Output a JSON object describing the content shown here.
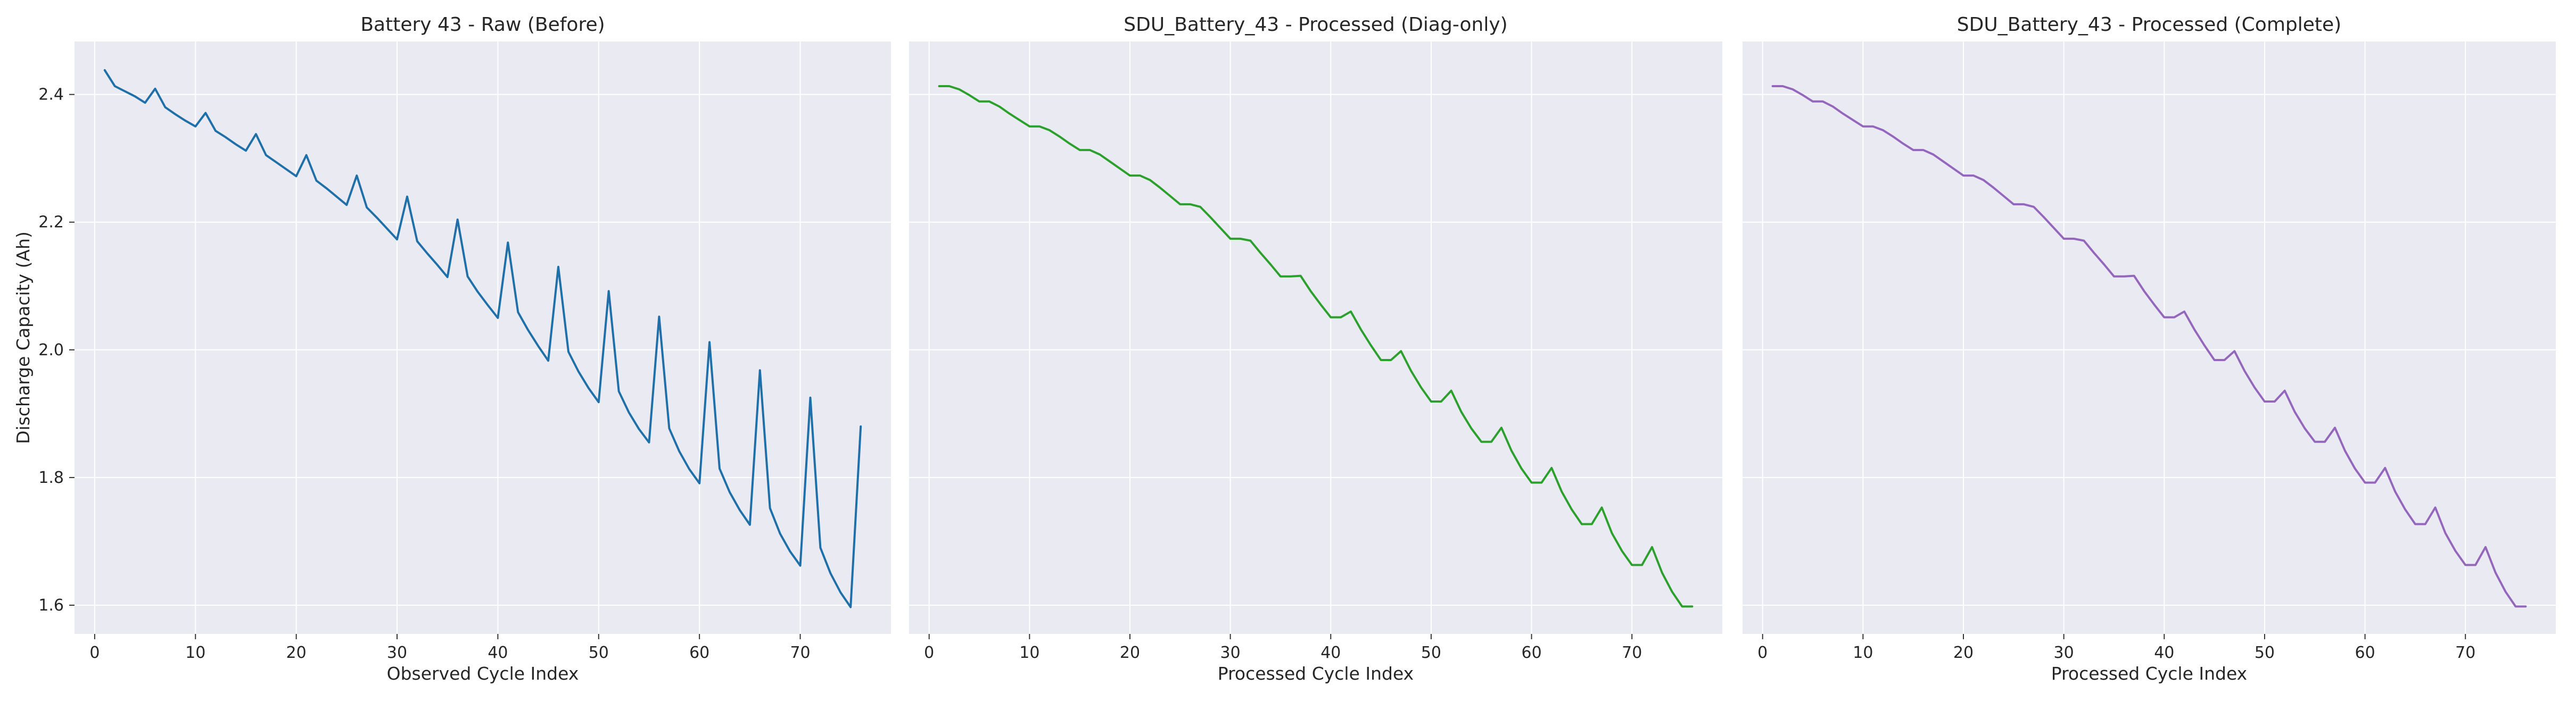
{
  "chart_data": [
    {
      "type": "line",
      "title": "Battery 43 - Raw (Before)",
      "xlabel": "Observed Cycle Index",
      "ylabel": "Discharge Capacity (Ah)",
      "xlim": [
        -2,
        79
      ],
      "ylim": [
        1.555,
        2.483
      ],
      "xticks": [
        "0",
        "10",
        "20",
        "30",
        "40",
        "50",
        "60",
        "70"
      ],
      "yticks": [
        "1.6",
        "1.8",
        "2.0",
        "2.2",
        "2.4"
      ],
      "grid": true,
      "color": "#1f6fa8",
      "series": [
        {
          "x": [
            1,
            2,
            3,
            4,
            5,
            6,
            7,
            8,
            9,
            10,
            11,
            12,
            13,
            14,
            15,
            16,
            17,
            18,
            19,
            20,
            21,
            22,
            23,
            24,
            25,
            26,
            27,
            28,
            29,
            30,
            31,
            32,
            33,
            34,
            35,
            36,
            37,
            38,
            39,
            40,
            41,
            42,
            43,
            44,
            45,
            46,
            47,
            48,
            49,
            50,
            51,
            52,
            53,
            54,
            55,
            56,
            57,
            58,
            59,
            60,
            61,
            62,
            63,
            64,
            65,
            66,
            67,
            68,
            69,
            70,
            71,
            72,
            73,
            74,
            75,
            76
          ],
          "values": [
            2.438,
            2.413,
            2.405,
            2.397,
            2.387,
            2.409,
            2.38,
            2.369,
            2.359,
            2.35,
            2.371,
            2.343,
            2.333,
            2.322,
            2.312,
            2.338,
            2.305,
            2.294,
            2.283,
            2.272,
            2.305,
            2.265,
            2.253,
            2.24,
            2.227,
            2.273,
            2.223,
            2.207,
            2.19,
            2.173,
            2.24,
            2.17,
            2.151,
            2.133,
            2.114,
            2.204,
            2.115,
            2.091,
            2.07,
            2.05,
            2.168,
            2.059,
            2.031,
            2.006,
            1.983,
            2.13,
            1.997,
            1.966,
            1.94,
            1.918,
            2.092,
            1.935,
            1.902,
            1.876,
            1.855,
            2.052,
            1.877,
            1.841,
            1.813,
            1.791,
            2.012,
            1.814,
            1.777,
            1.749,
            1.726,
            1.968,
            1.752,
            1.712,
            1.684,
            1.662,
            1.925,
            1.69,
            1.65,
            1.62,
            1.597,
            1.88
          ]
        }
      ]
    },
    {
      "type": "line",
      "title": "SDU_Battery_43 - Processed (Diag-only)",
      "xlabel": "Processed Cycle Index",
      "ylabel": "",
      "xlim": [
        -2,
        79
      ],
      "ylim": [
        1.555,
        2.483
      ],
      "xticks": [
        "0",
        "10",
        "20",
        "30",
        "40",
        "50",
        "60",
        "70"
      ],
      "yticks": [],
      "grid": true,
      "color": "#2ca02c",
      "series": [
        {
          "x": [
            1,
            2,
            3,
            4,
            5,
            6,
            7,
            8,
            9,
            10,
            11,
            12,
            13,
            14,
            15,
            16,
            17,
            18,
            19,
            20,
            21,
            22,
            23,
            24,
            25,
            26,
            27,
            28,
            29,
            30,
            31,
            32,
            33,
            34,
            35,
            36,
            37,
            38,
            39,
            40,
            41,
            42,
            43,
            44,
            45,
            46,
            47,
            48,
            49,
            50,
            51,
            52,
            53,
            54,
            55,
            56,
            57,
            58,
            59,
            60,
            61,
            62,
            63,
            64,
            65,
            66,
            67,
            68,
            69,
            70,
            71,
            72,
            73,
            74,
            75,
            76
          ],
          "values": [
            2.413,
            2.413,
            2.408,
            2.399,
            2.389,
            2.389,
            2.381,
            2.37,
            2.36,
            2.35,
            2.35,
            2.344,
            2.334,
            2.323,
            2.313,
            2.313,
            2.306,
            2.295,
            2.284,
            2.273,
            2.273,
            2.266,
            2.254,
            2.241,
            2.228,
            2.228,
            2.224,
            2.208,
            2.191,
            2.174,
            2.174,
            2.171,
            2.152,
            2.134,
            2.115,
            2.115,
            2.116,
            2.092,
            2.071,
            2.051,
            2.051,
            2.06,
            2.032,
            2.007,
            1.984,
            1.984,
            1.998,
            1.967,
            1.941,
            1.919,
            1.919,
            1.936,
            1.903,
            1.877,
            1.856,
            1.856,
            1.878,
            1.842,
            1.814,
            1.792,
            1.792,
            1.815,
            1.778,
            1.75,
            1.727,
            1.727,
            1.753,
            1.713,
            1.685,
            1.663,
            1.663,
            1.691,
            1.651,
            1.621,
            1.598,
            1.598
          ]
        }
      ]
    },
    {
      "type": "line",
      "title": "SDU_Battery_43 - Processed (Complete)",
      "xlabel": "Processed Cycle Index",
      "ylabel": "",
      "xlim": [
        -2,
        79
      ],
      "ylim": [
        1.555,
        2.483
      ],
      "xticks": [
        "0",
        "10",
        "20",
        "30",
        "40",
        "50",
        "60",
        "70"
      ],
      "yticks": [],
      "grid": true,
      "color": "#9467bd",
      "series": [
        {
          "x": [
            1,
            2,
            3,
            4,
            5,
            6,
            7,
            8,
            9,
            10,
            11,
            12,
            13,
            14,
            15,
            16,
            17,
            18,
            19,
            20,
            21,
            22,
            23,
            24,
            25,
            26,
            27,
            28,
            29,
            30,
            31,
            32,
            33,
            34,
            35,
            36,
            37,
            38,
            39,
            40,
            41,
            42,
            43,
            44,
            45,
            46,
            47,
            48,
            49,
            50,
            51,
            52,
            53,
            54,
            55,
            56,
            57,
            58,
            59,
            60,
            61,
            62,
            63,
            64,
            65,
            66,
            67,
            68,
            69,
            70,
            71,
            72,
            73,
            74,
            75,
            76
          ],
          "values": [
            2.413,
            2.413,
            2.408,
            2.399,
            2.389,
            2.389,
            2.381,
            2.37,
            2.36,
            2.35,
            2.35,
            2.344,
            2.334,
            2.323,
            2.313,
            2.313,
            2.306,
            2.295,
            2.284,
            2.273,
            2.273,
            2.266,
            2.254,
            2.241,
            2.228,
            2.228,
            2.224,
            2.208,
            2.191,
            2.174,
            2.174,
            2.171,
            2.152,
            2.134,
            2.115,
            2.115,
            2.116,
            2.092,
            2.071,
            2.051,
            2.051,
            2.06,
            2.032,
            2.007,
            1.984,
            1.984,
            1.998,
            1.967,
            1.941,
            1.919,
            1.919,
            1.936,
            1.903,
            1.877,
            1.856,
            1.856,
            1.878,
            1.842,
            1.814,
            1.792,
            1.792,
            1.815,
            1.778,
            1.75,
            1.727,
            1.727,
            1.753,
            1.713,
            1.685,
            1.663,
            1.663,
            1.691,
            1.651,
            1.621,
            1.598,
            1.598
          ]
        }
      ]
    }
  ]
}
